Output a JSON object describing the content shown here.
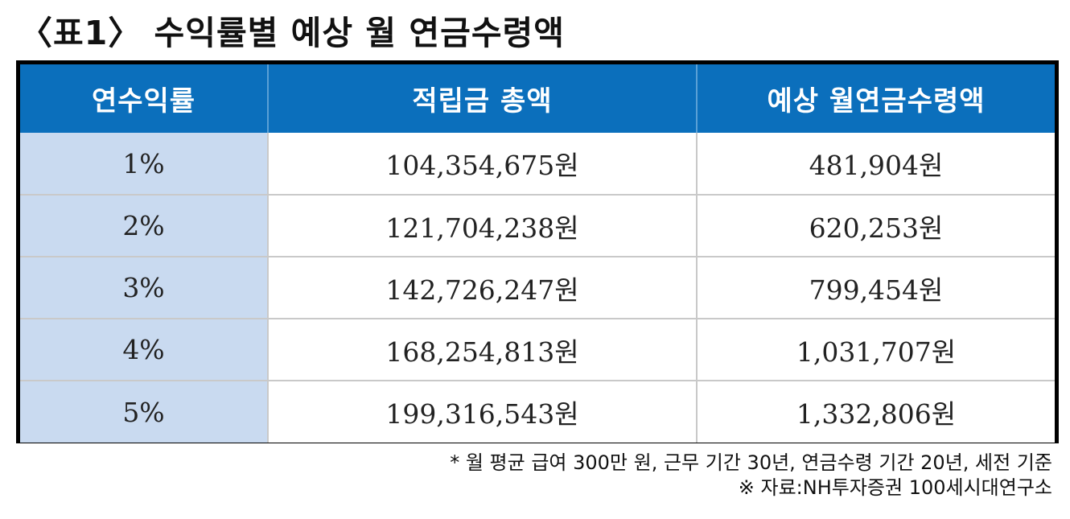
{
  "title": "〈표1〉 수익률별 예상 월 연금수령액",
  "table": {
    "headers": [
      "연수익률",
      "적립금 총액",
      "예상 월연금수령액"
    ],
    "rows": [
      {
        "rate": "1%",
        "total": "104,354,675원",
        "monthly": "481,904원"
      },
      {
        "rate": "2%",
        "total": "121,704,238원",
        "monthly": "620,253원"
      },
      {
        "rate": "3%",
        "total": "142,726,247원",
        "monthly": "799,454원"
      },
      {
        "rate": "4%",
        "total": "168,254,813원",
        "monthly": "1,031,707원"
      },
      {
        "rate": "5%",
        "total": "199,316,543원",
        "monthly": "1,332,806원"
      }
    ]
  },
  "notes": {
    "assumption": "* 월 평균 급여 300만 원, 근무 기간 30년, 연금수령 기간 20년, 세전 기준",
    "source": "※ 자료:NH투자증권 100세시대연구소"
  },
  "colors": {
    "header_bg": "#0b6fbc",
    "rate_cell_bg": "#c9daf0",
    "table_border": "#000000"
  }
}
